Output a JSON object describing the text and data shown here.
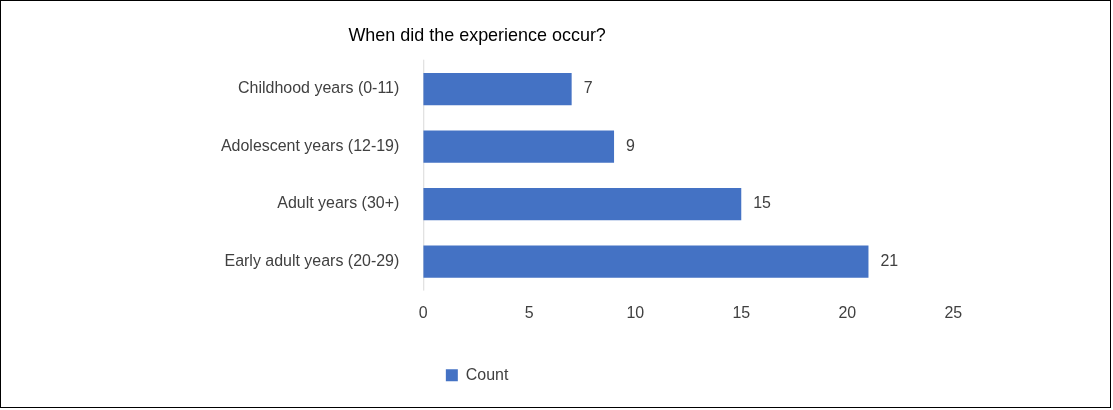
{
  "chart_data": {
    "type": "bar",
    "orientation": "horizontal",
    "title": "When did the experience occur?",
    "categories": [
      "Childhood years (0-11)",
      "Adolescent years (12-19)",
      "Adult years (30+)",
      "Early adult years (20-29)"
    ],
    "series": [
      {
        "name": "Count",
        "color": "#4472c4",
        "values": [
          7,
          9,
          15,
          21
        ]
      }
    ],
    "xlim": [
      0,
      25
    ],
    "xticks": [
      0,
      5,
      10,
      15,
      20,
      25
    ],
    "grid": false,
    "legend": "bottom",
    "data_labels": true
  }
}
